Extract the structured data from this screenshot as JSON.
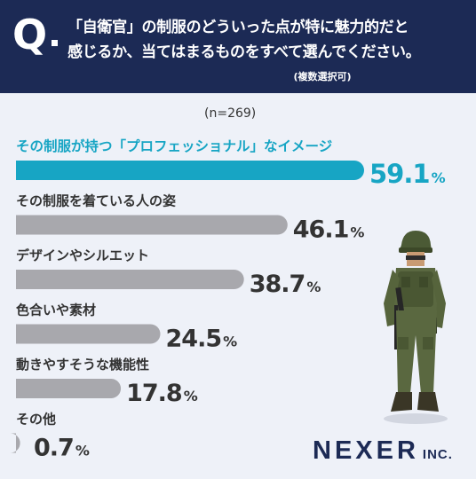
{
  "question": {
    "mark": "Q",
    "line1": "「自衛官」の制服のどういった点が特に魅力的だと",
    "line2": "感じるか、当てはまるものをすべて選んでください。",
    "note": "(複数選択可)"
  },
  "sample_size": "(n=269)",
  "logo": {
    "main": "NEXER",
    "sub": "INC."
  },
  "colors": {
    "header": "#1c2a55",
    "highlight": "#17a5c4",
    "bar": "#a8a8ad",
    "text": "#333333"
  },
  "chart_data": {
    "type": "bar",
    "orientation": "horizontal",
    "unit": "%",
    "categories": [
      "その制服が持つ「プロフェッショナル」なイメージ",
      "その制服を着ている人の姿",
      "デザインやシルエット",
      "色合いや素材",
      "動きやすそうな機能性",
      "その他"
    ],
    "values": [
      59.1,
      46.1,
      38.7,
      24.5,
      17.8,
      0.7
    ],
    "value_labels": [
      "59.1",
      "46.1",
      "38.7",
      "24.5",
      "17.8",
      "0.7"
    ],
    "highlight_index": 0,
    "xlim": [
      0,
      59.1
    ]
  }
}
